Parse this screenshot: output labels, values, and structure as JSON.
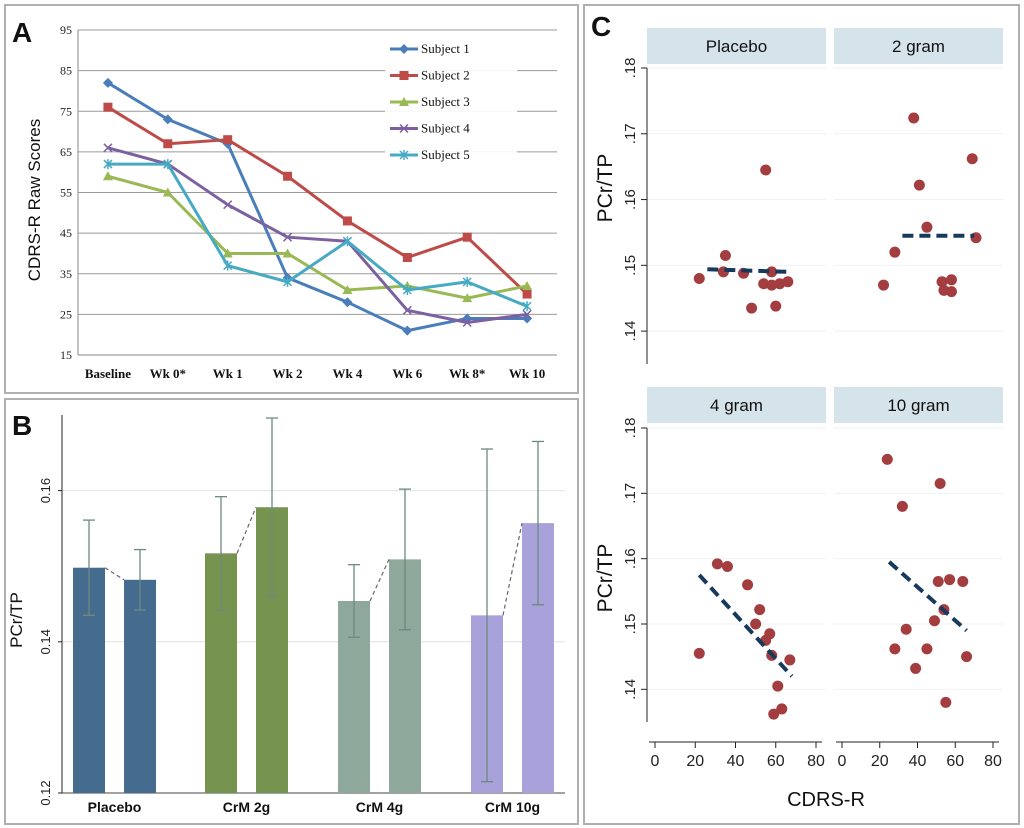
{
  "panels": {
    "a": "A",
    "b": "B",
    "c": "C"
  },
  "chart_data": [
    {
      "id": "A",
      "type": "line",
      "ylabel": "CDRS-R Raw Scores",
      "ylim": [
        15,
        95
      ],
      "yticks": [
        15,
        25,
        35,
        45,
        55,
        65,
        75,
        85,
        95
      ],
      "grid": true,
      "legend_position": "top-right",
      "categories": [
        "Baseline",
        "Wk 0*",
        "Wk 1",
        "Wk 2",
        "Wk 4",
        "Wk 6",
        "Wk 8*",
        "Wk 10"
      ],
      "series": [
        {
          "name": "Subject 1",
          "color": "#4a7ebb",
          "marker": "diamond",
          "values": [
            82,
            73,
            67,
            34,
            28,
            21,
            24,
            24
          ]
        },
        {
          "name": "Subject 2",
          "color": "#be4b48",
          "marker": "square",
          "values": [
            76,
            67,
            68,
            59,
            48,
            39,
            44,
            30
          ]
        },
        {
          "name": "Subject 3",
          "color": "#98b954",
          "marker": "triangle",
          "values": [
            59,
            55,
            40,
            40,
            31,
            32,
            29,
            32
          ]
        },
        {
          "name": "Subject 4",
          "color": "#7d60a0",
          "marker": "x",
          "values": [
            66,
            62,
            52,
            44,
            43,
            26,
            23,
            25
          ]
        },
        {
          "name": "Subject 5",
          "color": "#46aac5",
          "marker": "star",
          "values": [
            62,
            62,
            37,
            33,
            43,
            31,
            33,
            27
          ]
        }
      ]
    },
    {
      "id": "B",
      "type": "bar",
      "ylabel": "PCr/TP",
      "ylim": [
        0.12,
        0.17
      ],
      "yticks": [
        "0.12",
        "0.14",
        "0.16"
      ],
      "categories": [
        "Placebo",
        "CrM 2g",
        "CrM 4g",
        "CrM 10g"
      ],
      "bars": [
        {
          "group": "Placebo",
          "value": 0.1498,
          "error": 0.0063,
          "color": "#456b8e"
        },
        {
          "group": "Placebo",
          "value": 0.1482,
          "error": 0.004,
          "color": "#456b8e"
        },
        {
          "group": "CrM 2g",
          "value": 0.1517,
          "error": 0.0075,
          "color": "#76934f"
        },
        {
          "group": "CrM 2g",
          "value": 0.1578,
          "error": 0.0118,
          "color": "#76934f"
        },
        {
          "group": "CrM 4g",
          "value": 0.1454,
          "error": 0.0048,
          "color": "#8ea99c"
        },
        {
          "group": "CrM 4g",
          "value": 0.1509,
          "error": 0.0093,
          "color": "#8ea99c"
        },
        {
          "group": "CrM 10g",
          "value": 0.1435,
          "error": 0.022,
          "color": "#a9a1d9"
        },
        {
          "group": "CrM 10g",
          "value": 0.1557,
          "error": 0.0108,
          "color": "#a9a1d9"
        }
      ]
    },
    {
      "id": "C",
      "type": "scatter",
      "xlabel": "CDRS-R",
      "ylabel": "PCr/TP",
      "xlim": [
        0,
        80
      ],
      "ylim": [
        0.135,
        0.18
      ],
      "xticks": [
        "0",
        "20",
        "40",
        "60",
        "80"
      ],
      "yticks": [
        ".14",
        ".15",
        ".16",
        ".17",
        ".18"
      ],
      "facets": [
        {
          "title": "Placebo",
          "points": [
            [
              22,
              0.148
            ],
            [
              34,
              0.149
            ],
            [
              35,
              0.1515
            ],
            [
              44,
              0.1488
            ],
            [
              48,
              0.1435
            ],
            [
              54,
              0.1472
            ],
            [
              55,
              0.1645
            ],
            [
              58,
              0.149
            ],
            [
              58,
              0.147
            ],
            [
              60,
              0.1438
            ],
            [
              62,
              0.1472
            ],
            [
              66,
              0.1475
            ]
          ],
          "fit": [
            [
              26,
              0.1494
            ],
            [
              67,
              0.149
            ]
          ]
        },
        {
          "title": "2 gram",
          "points": [
            [
              22,
              0.147
            ],
            [
              28,
              0.152
            ],
            [
              38,
              0.1724
            ],
            [
              41,
              0.1622
            ],
            [
              45,
              0.1558
            ],
            [
              53,
              0.1475
            ],
            [
              54,
              0.1462
            ],
            [
              58,
              0.1478
            ],
            [
              58,
              0.146
            ],
            [
              69,
              0.1662
            ],
            [
              71,
              0.1542
            ]
          ],
          "fit": [
            [
              32,
              0.1545
            ],
            [
              70,
              0.1545
            ]
          ]
        },
        {
          "title": "4 gram",
          "points": [
            [
              22,
              0.1455
            ],
            [
              31,
              0.1592
            ],
            [
              36,
              0.1588
            ],
            [
              46,
              0.156
            ],
            [
              50,
              0.15
            ],
            [
              52,
              0.1522
            ],
            [
              55,
              0.1475
            ],
            [
              57,
              0.1485
            ],
            [
              58,
              0.1452
            ],
            [
              59,
              0.1362
            ],
            [
              61,
              0.1405
            ],
            [
              63,
              0.137
            ],
            [
              67,
              0.1445
            ]
          ],
          "fit": [
            [
              22,
              0.1575
            ],
            [
              68,
              0.142
            ]
          ]
        },
        {
          "title": "10 gram",
          "points": [
            [
              24,
              0.1752
            ],
            [
              28,
              0.1462
            ],
            [
              32,
              0.168
            ],
            [
              34,
              0.1492
            ],
            [
              39,
              0.1432
            ],
            [
              45,
              0.1462
            ],
            [
              49,
              0.1505
            ],
            [
              51,
              0.1565
            ],
            [
              52,
              0.1715
            ],
            [
              54,
              0.1522
            ],
            [
              55,
              0.138
            ],
            [
              57,
              0.1568
            ],
            [
              64,
              0.1565
            ],
            [
              66,
              0.145
            ]
          ],
          "fit": [
            [
              25,
              0.1595
            ],
            [
              66,
              0.149
            ]
          ]
        }
      ]
    }
  ]
}
